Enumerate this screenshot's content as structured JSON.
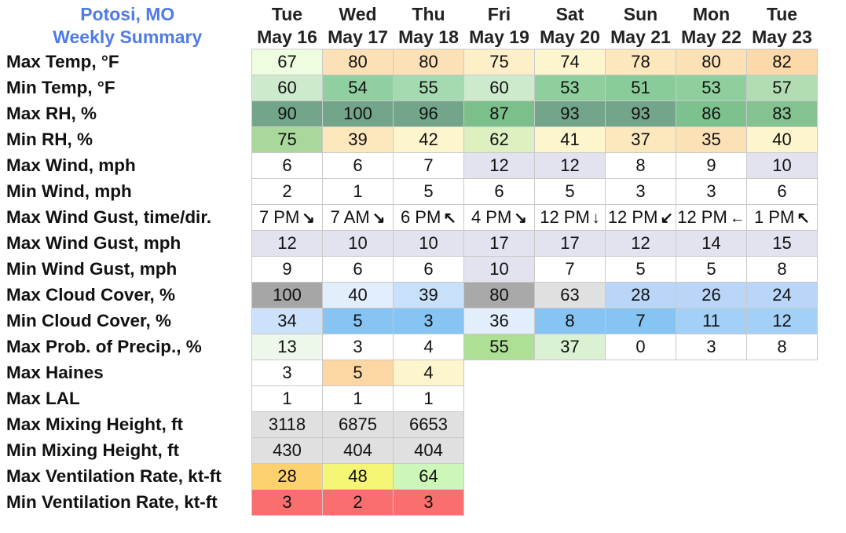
{
  "title": {
    "line1": "Potosi, MO",
    "line2": "Weekly Summary"
  },
  "days": [
    {
      "dow": "Tue",
      "date": "May 16"
    },
    {
      "dow": "Wed",
      "date": "May 17"
    },
    {
      "dow": "Thu",
      "date": "May 18"
    },
    {
      "dow": "Fri",
      "date": "May 19"
    },
    {
      "dow": "Sat",
      "date": "May 20"
    },
    {
      "dow": "Sun",
      "date": "May 21"
    },
    {
      "dow": "Mon",
      "date": "May 22"
    },
    {
      "dow": "Tue",
      "date": "May 23"
    }
  ],
  "rows": [
    {
      "label": "Max Temp, °F",
      "values": [
        "67",
        "80",
        "80",
        "75",
        "74",
        "78",
        "80",
        "82"
      ],
      "colors": [
        "#eefde0",
        "#fde1b6",
        "#fde1b6",
        "#fdf0c8",
        "#fdf5cd",
        "#fde8bd",
        "#fde1b6",
        "#fdd9aa"
      ]
    },
    {
      "label": "Min Temp, °F",
      "values": [
        "60",
        "54",
        "55",
        "60",
        "53",
        "51",
        "53",
        "57"
      ],
      "colors": [
        "#cdeacd",
        "#90cfa0",
        "#a5d9b0",
        "#cdeacd",
        "#8fcf9d",
        "#8acc99",
        "#8fcf9d",
        "#b2ddb3"
      ]
    },
    {
      "label": "Max RH, %",
      "values": [
        "90",
        "100",
        "96",
        "87",
        "93",
        "93",
        "86",
        "83"
      ],
      "colors": [
        "#73a58a",
        "#73a58a",
        "#73a58a",
        "#7bbf8b",
        "#73a58a",
        "#73a58a",
        "#7dc18e",
        "#84c391"
      ]
    },
    {
      "label": "Min RH, %",
      "values": [
        "75",
        "39",
        "42",
        "62",
        "41",
        "37",
        "35",
        "40"
      ],
      "colors": [
        "#aad79b",
        "#fde8bd",
        "#fdf5cd",
        "#dcf0c0",
        "#fdf5cd",
        "#fde8bd",
        "#fde1b6",
        "#fdf5cd"
      ]
    },
    {
      "label": "Max Wind, mph",
      "values": [
        "6",
        "6",
        "7",
        "12",
        "12",
        "8",
        "9",
        "10"
      ],
      "colors": [
        "#ffffff",
        "#ffffff",
        "#ffffff",
        "#e3e3f0",
        "#e3e3f0",
        "#ffffff",
        "#ffffff",
        "#e3e3f0"
      ]
    },
    {
      "label": "Min Wind, mph",
      "values": [
        "2",
        "1",
        "5",
        "6",
        "5",
        "3",
        "3",
        "6"
      ],
      "colors": [
        "#ffffff",
        "#ffffff",
        "#ffffff",
        "#ffffff",
        "#ffffff",
        "#ffffff",
        "#ffffff",
        "#ffffff"
      ]
    },
    {
      "label": "Max Wind Gust, time/dir.",
      "values": [
        "7 PM",
        "7 AM",
        "6 PM",
        "4 PM",
        "12 PM",
        "12 PM",
        "12 PM",
        "1 PM"
      ],
      "arrows": [
        "↘",
        "↘",
        "↖",
        "↘",
        "↓",
        "↙",
        "←",
        "↖"
      ],
      "colors": [
        "#ffffff",
        "#ffffff",
        "#ffffff",
        "#ffffff",
        "#ffffff",
        "#ffffff",
        "#ffffff",
        "#ffffff"
      ]
    },
    {
      "label": "Max Wind Gust, mph",
      "values": [
        "12",
        "10",
        "10",
        "17",
        "17",
        "12",
        "14",
        "15"
      ],
      "colors": [
        "#e3e3f0",
        "#e3e3f0",
        "#e3e3f0",
        "#e3e3f0",
        "#e3e3f0",
        "#e3e3f0",
        "#e3e3f0",
        "#e3e3f0"
      ]
    },
    {
      "label": "Min Wind Gust, mph",
      "values": [
        "9",
        "6",
        "6",
        "10",
        "7",
        "5",
        "5",
        "8"
      ],
      "colors": [
        "#ffffff",
        "#ffffff",
        "#ffffff",
        "#e3e3f0",
        "#ffffff",
        "#ffffff",
        "#ffffff",
        "#ffffff"
      ]
    },
    {
      "label": "Max Cloud Cover, %",
      "values": [
        "100",
        "40",
        "39",
        "80",
        "63",
        "28",
        "26",
        "24"
      ],
      "colors": [
        "#a6a6a6",
        "#e3eefd",
        "#c9e0fb",
        "#a9a9a9",
        "#e0e0e0",
        "#b9d6f9",
        "#b9d6f9",
        "#b9d6f9"
      ]
    },
    {
      "label": "Min Cloud Cover, %",
      "values": [
        "34",
        "5",
        "3",
        "36",
        "8",
        "7",
        "11",
        "12"
      ],
      "colors": [
        "#cce2fb",
        "#85c4f3",
        "#85c4f3",
        "#e3eefd",
        "#85c4f3",
        "#85c4f3",
        "#a3d0f6",
        "#a3d0f6"
      ]
    },
    {
      "label": "Max Prob. of Precip., %",
      "values": [
        "13",
        "3",
        "4",
        "55",
        "37",
        "0",
        "3",
        "8"
      ],
      "colors": [
        "#eef8ea",
        "#ffffff",
        "#ffffff",
        "#addf95",
        "#daf1d3",
        "#ffffff",
        "#ffffff",
        "#ffffff"
      ]
    },
    {
      "label": "Max Haines",
      "values": [
        "3",
        "5",
        "4"
      ],
      "colors": [
        "#ffffff",
        "#fdd7a3",
        "#fdf5cd"
      ]
    },
    {
      "label": "Max LAL",
      "values": [
        "1",
        "1",
        "1"
      ],
      "colors": [
        "#ffffff",
        "#ffffff",
        "#ffffff"
      ]
    },
    {
      "label": "Max Mixing Height, ft",
      "values": [
        "3118",
        "6875",
        "6653"
      ],
      "colors": [
        "#e0e0e0",
        "#e0e0e0",
        "#e0e0e0"
      ]
    },
    {
      "label": "Min Mixing Height, ft",
      "values": [
        "430",
        "404",
        "404"
      ],
      "colors": [
        "#e0e0e0",
        "#e0e0e0",
        "#e0e0e0"
      ]
    },
    {
      "label": "Max Ventilation Rate, kt-ft",
      "values": [
        "28",
        "48",
        "64"
      ],
      "colors": [
        "#fdd26e",
        "#f6f676",
        "#cdf7b9"
      ]
    },
    {
      "label": "Min Ventilation Rate, kt-ft",
      "values": [
        "3",
        "2",
        "3"
      ],
      "colors": [
        "#fa6e6e",
        "#fa6e6e",
        "#fa6e6e"
      ]
    }
  ]
}
